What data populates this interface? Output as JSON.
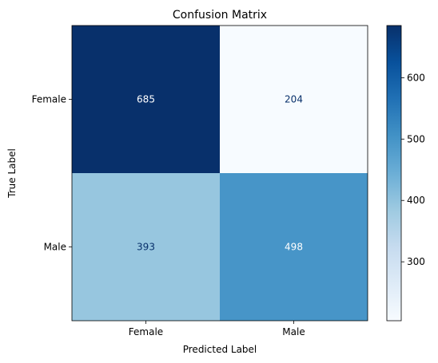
{
  "chart_data": {
    "type": "heatmap",
    "title": "Confusion Matrix",
    "xlabel": "Predicted Label",
    "ylabel": "True Label",
    "x_categories": [
      "Female",
      "Male"
    ],
    "y_categories": [
      "Female",
      "Male"
    ],
    "values": [
      [
        685,
        204
      ],
      [
        393,
        498
      ]
    ],
    "colormap": "Blues",
    "colorbar": {
      "min": 204,
      "max": 685,
      "ticks": [
        300,
        400,
        500,
        600
      ]
    },
    "colors": {
      "low": "#f7fbff",
      "high": "#08306b",
      "text_light": "#ffffff",
      "text_dark": "#08306b"
    }
  }
}
